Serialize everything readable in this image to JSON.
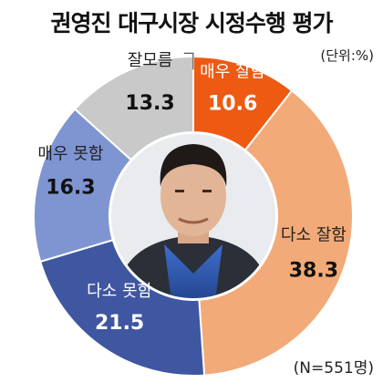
{
  "title": "권영진 대구시장 시정수행 평가",
  "unit_note": "(단위:%)",
  "sample_note": "(N=551명)",
  "photo": "portrait-photo",
  "chart_data": {
    "type": "pie",
    "subtype": "donut",
    "start": "top, clockwise",
    "categories": [
      "매우 잘함",
      "다소 잘함",
      "다소 못함",
      "매우 못함",
      "잘모름"
    ],
    "values": [
      10.6,
      38.3,
      21.5,
      16.3,
      13.3
    ],
    "colors": [
      "#ee5a12",
      "#f2aa78",
      "#3f56a0",
      "#7f95d2",
      "#c9c9c9"
    ],
    "label_colors": [
      "#ffffff",
      "#222222",
      "#ffffff",
      "#222222",
      "#222222"
    ],
    "value_colors": [
      "#ffffff",
      "#111111",
      "#ffffff",
      "#111111",
      "#111111"
    ]
  }
}
